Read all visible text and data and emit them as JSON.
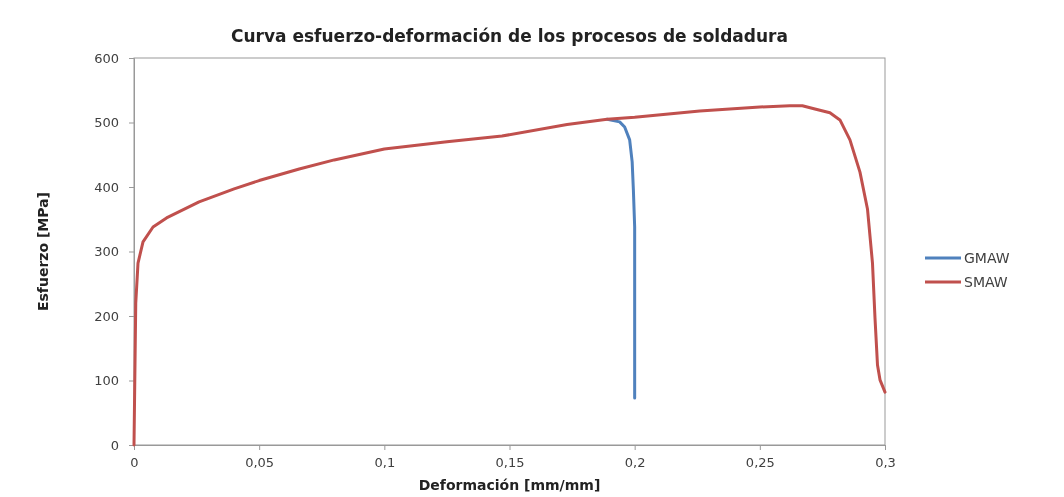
{
  "chart_data": {
    "type": "line",
    "title": "Curva esfuerzo-deformación de los procesos de soldadura",
    "xlabel": "Deformación [mm/mm]",
    "ylabel": "Esfuerzo [MPa]",
    "xlim": [
      0,
      0.3
    ],
    "xticks": [
      {
        "value": 0,
        "label": "0"
      },
      {
        "value": 0.05,
        "label": "0,05"
      },
      {
        "value": 0.1,
        "label": "0,1"
      },
      {
        "value": 0.15,
        "label": "0,15"
      },
      {
        "value": 0.2,
        "label": "0,2"
      },
      {
        "value": 0.25,
        "label": "0,25"
      },
      {
        "value": 0.3,
        "label": "0,3"
      }
    ],
    "ylim": [
      0,
      600
    ],
    "yticks": [
      0,
      100,
      200,
      300,
      400,
      500,
      600
    ],
    "grid": false,
    "legend": "right",
    "marker": "none",
    "line_style": "solid",
    "series": [
      {
        "name": "GMAW",
        "color": "#4f81bd",
        "x": [
          0.189,
          0.194,
          0.196,
          0.198,
          0.199,
          0.1995,
          0.2,
          0.2
        ],
        "values": [
          505,
          501,
          493,
          473,
          439,
          394,
          338,
          73
        ]
      },
      {
        "name": "SMAW",
        "color": "#c0504d",
        "x": [
          0,
          0.0007,
          0.0016,
          0.0036,
          0.0076,
          0.013,
          0.026,
          0.04,
          0.05,
          0.066,
          0.08,
          0.1,
          0.125,
          0.147,
          0.173,
          0.189,
          0.2,
          0.226,
          0.25,
          0.262,
          0.267,
          0.272,
          0.278,
          0.282,
          0.286,
          0.29,
          0.293,
          0.295,
          0.296,
          0.297,
          0.298,
          0.3
        ],
        "values": [
          0,
          220,
          282,
          315,
          338,
          352,
          377,
          397,
          410,
          428,
          442,
          459,
          470,
          479,
          497,
          505,
          508,
          518,
          524,
          526,
          526,
          521,
          515,
          504,
          473,
          423,
          366,
          282,
          197,
          124,
          101,
          82
        ]
      }
    ]
  }
}
